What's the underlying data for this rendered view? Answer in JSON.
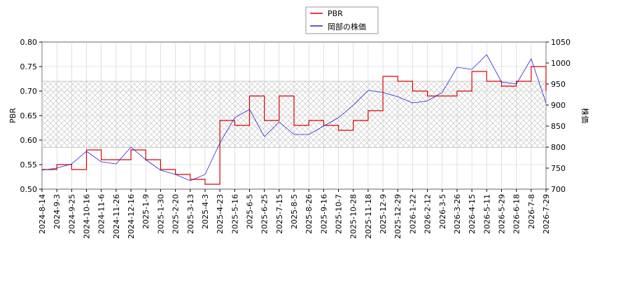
{
  "chart_data": {
    "type": "line",
    "legend": {
      "placement": "top-center",
      "entries": [
        {
          "label": "PBR",
          "color": "#dd0000"
        },
        {
          "label": "岡部の株価",
          "color": "#2222dd"
        }
      ]
    },
    "ylabel_left": "PBR",
    "ylabel_right": "株価",
    "ylim_left": [
      0.5,
      0.8
    ],
    "ylim_right": [
      700,
      1050
    ],
    "yticks_left": [
      "0.50",
      "0.55",
      "0.60",
      "0.65",
      "0.70",
      "0.75",
      "0.80"
    ],
    "yticks_right": [
      "700",
      "750",
      "800",
      "850",
      "900",
      "950",
      "1000",
      "1050"
    ],
    "band": {
      "low": 0.585,
      "high": 0.72
    },
    "grid": true,
    "x_tick_labels": [
      "2024-8-14",
      "2024-9-3",
      "2024-9-25",
      "2024-10-16",
      "2024-11-6",
      "2024-11-26",
      "2024-12-16",
      "2025-1-9",
      "2025-1-30",
      "2025-2-20",
      "2025-3-13",
      "2025-4-3",
      "2025-4-23",
      "2025-5-16",
      "2025-6-5",
      "2025-6-25",
      "2025-7-15",
      "2025-8-5",
      "2025-8-26",
      "2025-9-16",
      "2025-10-7",
      "2025-10-28",
      "2025-11-18",
      "2025-12-9",
      "2025-12-29",
      "2026-1-22",
      "2026-2-12",
      "2026-3-5",
      "2026-3-26",
      "2026-4-15",
      "2026-5-11",
      "2026-5-29",
      "2026-6-18",
      "2026-7-8",
      "2026-7-29"
    ],
    "series": [
      {
        "name": "PBR",
        "axis": "left",
        "color": "#dd0000",
        "x_index": [
          0,
          1,
          2,
          3,
          4,
          5,
          6,
          7,
          8,
          9,
          10,
          11,
          12,
          13,
          14,
          15,
          16,
          17,
          18,
          19,
          20,
          21,
          22,
          23,
          24,
          25,
          26,
          27,
          28,
          29,
          30,
          31,
          32,
          33,
          34
        ],
        "values": [
          0.54,
          0.55,
          0.54,
          0.58,
          0.56,
          0.56,
          0.58,
          0.56,
          0.54,
          0.53,
          0.52,
          0.51,
          0.64,
          0.63,
          0.69,
          0.64,
          0.69,
          0.63,
          0.64,
          0.63,
          0.62,
          0.64,
          0.66,
          0.73,
          0.72,
          0.7,
          0.69,
          0.69,
          0.7,
          0.74,
          0.72,
          0.71,
          0.72,
          0.75,
          0.7
        ]
      },
      {
        "name": "岡部の株価",
        "axis": "right",
        "color": "#2222dd",
        "x_index": [
          0,
          1,
          2,
          3,
          4,
          5,
          6,
          7,
          8,
          9,
          10,
          11,
          12,
          13,
          14,
          15,
          16,
          17,
          18,
          19,
          20,
          21,
          22,
          23,
          24,
          25,
          26,
          27,
          28,
          29,
          30,
          31,
          32,
          33,
          34
        ],
        "values": [
          745,
          750,
          760,
          790,
          765,
          760,
          800,
          770,
          745,
          735,
          720,
          735,
          810,
          870,
          890,
          825,
          860,
          830,
          830,
          850,
          870,
          900,
          935,
          930,
          920,
          905,
          910,
          930,
          990,
          985,
          1020,
          955,
          950,
          1010,
          905
        ]
      }
    ]
  }
}
